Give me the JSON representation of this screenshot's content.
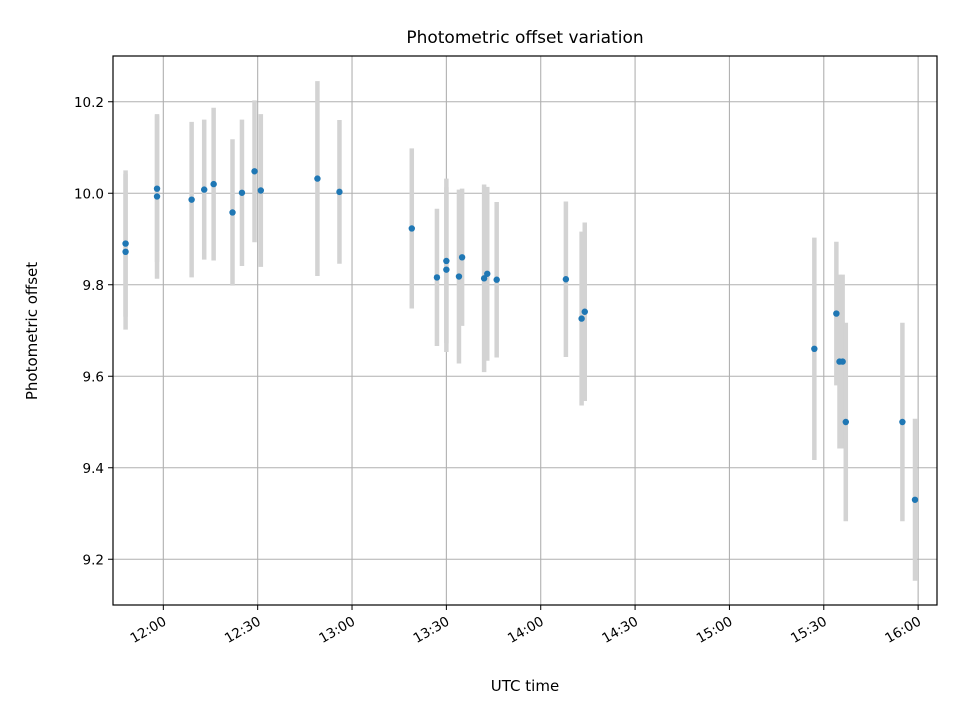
{
  "chart_data": {
    "type": "scatter",
    "title": "Photometric offset variation",
    "xlabel": "UTC time",
    "ylabel": "Photometric offset",
    "x_ticks": [
      "12:00",
      "12:30",
      "13:00",
      "13:30",
      "14:00",
      "14:30",
      "15:00",
      "15:30",
      "16:00"
    ],
    "y_ticks": [
      "9.2",
      "9.4",
      "9.6",
      "9.8",
      "10.0",
      "10.2"
    ],
    "xlim": [
      "11:44",
      "16:06"
    ],
    "ylim": [
      9.1,
      10.3
    ],
    "grid": true,
    "point_color": "#1f77b4",
    "errorbar_color": "#d3d3d3",
    "points": [
      {
        "time": "11:48",
        "y": 9.872,
        "err": 0.17
      },
      {
        "time": "11:48",
        "y": 9.89,
        "err": 0.16
      },
      {
        "time": "11:58",
        "y": 9.993,
        "err": 0.18
      },
      {
        "time": "11:58",
        "y": 10.01,
        "err": 0.16
      },
      {
        "time": "12:09",
        "y": 9.986,
        "err": 0.17
      },
      {
        "time": "12:13",
        "y": 10.008,
        "err": 0.153
      },
      {
        "time": "12:16",
        "y": 10.02,
        "err": 0.167
      },
      {
        "time": "12:22",
        "y": 9.958,
        "err": 0.16
      },
      {
        "time": "12:25",
        "y": 10.001,
        "err": 0.16
      },
      {
        "time": "12:29",
        "y": 10.048,
        "err": 0.155
      },
      {
        "time": "12:31",
        "y": 10.006,
        "err": 0.167
      },
      {
        "time": "12:49",
        "y": 10.032,
        "err": 0.213
      },
      {
        "time": "12:56",
        "y": 10.003,
        "err": 0.157
      },
      {
        "time": "13:19",
        "y": 9.923,
        "err": 0.175
      },
      {
        "time": "13:27",
        "y": 9.816,
        "err": 0.15
      },
      {
        "time": "13:30",
        "y": 9.852,
        "err": 0.18
      },
      {
        "time": "13:30",
        "y": 9.833,
        "err": 0.18
      },
      {
        "time": "13:34",
        "y": 9.818,
        "err": 0.19
      },
      {
        "time": "13:35",
        "y": 9.86,
        "err": 0.15
      },
      {
        "time": "13:42",
        "y": 9.814,
        "err": 0.205
      },
      {
        "time": "13:43",
        "y": 9.824,
        "err": 0.19
      },
      {
        "time": "13:46",
        "y": 9.811,
        "err": 0.17
      },
      {
        "time": "14:08",
        "y": 9.812,
        "err": 0.17
      },
      {
        "time": "14:13",
        "y": 9.726,
        "err": 0.19
      },
      {
        "time": "14:14",
        "y": 9.741,
        "err": 0.195
      },
      {
        "time": "15:27",
        "y": 9.66,
        "err": 0.243
      },
      {
        "time": "15:34",
        "y": 9.737,
        "err": 0.157
      },
      {
        "time": "15:35",
        "y": 9.632,
        "err": 0.19
      },
      {
        "time": "15:36",
        "y": 9.632,
        "err": 0.19
      },
      {
        "time": "15:37",
        "y": 9.5,
        "err": 0.217
      },
      {
        "time": "15:55",
        "y": 9.5,
        "err": 0.217
      },
      {
        "time": "15:59",
        "y": 9.33,
        "err": 0.177
      }
    ]
  }
}
